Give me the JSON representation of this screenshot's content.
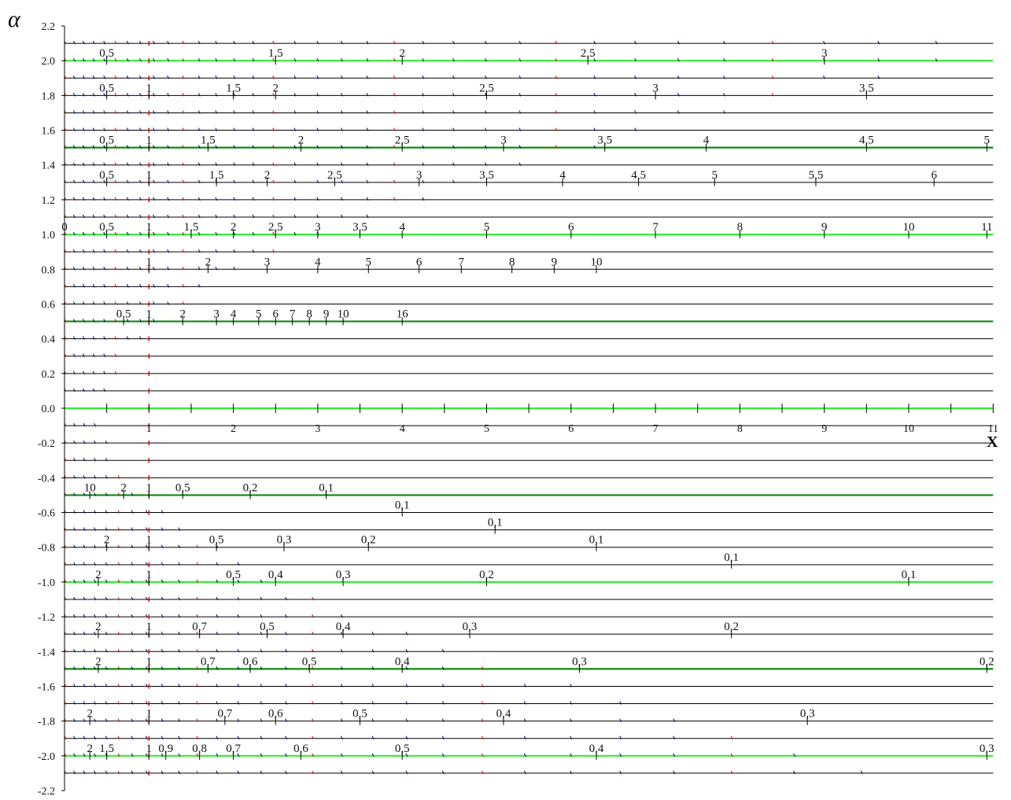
{
  "chart_data": {
    "type": "line",
    "title": "",
    "xlabel": "X",
    "ylabel": "α",
    "xlim": [
      0,
      11
    ],
    "ylim": [
      -2.2,
      2.2
    ],
    "yticks": [
      "2.2",
      "2.0",
      "1.8",
      "1.6",
      "1.4",
      "1.2",
      "1.0",
      "0.8",
      "0.6",
      "0.4",
      "0.2",
      "0.0",
      "-0.2",
      "-0.4",
      "-0.6",
      "-0.8",
      "-1.0",
      "-1.2",
      "-1.4",
      "-1.6",
      "-1.8",
      "-2.0",
      "-2.2"
    ],
    "xticks": [
      "1",
      "2",
      "3",
      "4",
      "5",
      "6",
      "7",
      "8",
      "9",
      "10",
      "11"
    ],
    "grid_step": 0.1,
    "colors": {
      "grid": "#000000",
      "highlight_light": "#33ee33",
      "highlight_dark": "#118811",
      "mark_red": "#dd0000",
      "mark_blue": "#000066"
    },
    "highlight_rows": [
      {
        "alpha": 2.0,
        "color": "light"
      },
      {
        "alpha": 1.5,
        "color": "dark"
      },
      {
        "alpha": 1.0,
        "color": "light"
      },
      {
        "alpha": 0.5,
        "color": "dark"
      },
      {
        "alpha": 0.0,
        "color": "light"
      },
      {
        "alpha": -0.5,
        "color": "dark"
      },
      {
        "alpha": -1.0,
        "color": "light"
      },
      {
        "alpha": -1.5,
        "color": "dark"
      },
      {
        "alpha": -2.0,
        "color": "light"
      }
    ],
    "row_labels": [
      {
        "alpha": 2.0,
        "labels": [
          {
            "x": 0.5,
            "t": "0,5"
          },
          {
            "x": 2.5,
            "t": "1,5"
          },
          {
            "x": 4.0,
            "t": "2"
          },
          {
            "x": 6.2,
            "t": "2,5"
          },
          {
            "x": 9.0,
            "t": "3"
          }
        ]
      },
      {
        "alpha": 1.8,
        "labels": [
          {
            "x": 0.5,
            "t": "0,5"
          },
          {
            "x": 1.0,
            "t": "1"
          },
          {
            "x": 2.0,
            "t": "1,5"
          },
          {
            "x": 2.5,
            "t": "2"
          },
          {
            "x": 5.0,
            "t": "2,5"
          },
          {
            "x": 7.0,
            "t": "3"
          },
          {
            "x": 9.5,
            "t": "3,5"
          }
        ]
      },
      {
        "alpha": 1.5,
        "labels": [
          {
            "x": 0.5,
            "t": "0,5"
          },
          {
            "x": 1.0,
            "t": "1"
          },
          {
            "x": 1.7,
            "t": "1,5"
          },
          {
            "x": 2.8,
            "t": "2"
          },
          {
            "x": 4.0,
            "t": "2,5"
          },
          {
            "x": 5.2,
            "t": "3"
          },
          {
            "x": 6.4,
            "t": "3,5"
          },
          {
            "x": 7.6,
            "t": "4"
          },
          {
            "x": 9.5,
            "t": "4,5"
          },
          {
            "x": 11.0,
            "t": "5"
          }
        ]
      },
      {
        "alpha": 1.3,
        "labels": [
          {
            "x": 0.5,
            "t": "0,5"
          },
          {
            "x": 1.0,
            "t": "1"
          },
          {
            "x": 1.8,
            "t": "1,5"
          },
          {
            "x": 2.4,
            "t": "2"
          },
          {
            "x": 3.2,
            "t": "2,5"
          },
          {
            "x": 4.2,
            "t": "3"
          },
          {
            "x": 5.0,
            "t": "3,5"
          },
          {
            "x": 5.9,
            "t": "4"
          },
          {
            "x": 6.8,
            "t": "4,5"
          },
          {
            "x": 7.7,
            "t": "5"
          },
          {
            "x": 8.9,
            "t": "5,5"
          },
          {
            "x": 10.3,
            "t": "6"
          }
        ]
      },
      {
        "alpha": 1.0,
        "labels": [
          {
            "x": 0.0,
            "t": "0"
          },
          {
            "x": 0.5,
            "t": "0,5"
          },
          {
            "x": 1.0,
            "t": "1"
          },
          {
            "x": 1.5,
            "t": "1,5"
          },
          {
            "x": 2.0,
            "t": "2"
          },
          {
            "x": 2.5,
            "t": "2,5"
          },
          {
            "x": 3.0,
            "t": "3"
          },
          {
            "x": 3.5,
            "t": "3,5"
          },
          {
            "x": 4.0,
            "t": "4"
          },
          {
            "x": 5.0,
            "t": "5"
          },
          {
            "x": 6.0,
            "t": "6"
          },
          {
            "x": 7.0,
            "t": "7"
          },
          {
            "x": 8.0,
            "t": "8"
          },
          {
            "x": 9.0,
            "t": "9"
          },
          {
            "x": 10.0,
            "t": "10"
          },
          {
            "x": 11.0,
            "t": "11"
          }
        ]
      },
      {
        "alpha": 0.8,
        "labels": [
          {
            "x": 1.0,
            "t": "1"
          },
          {
            "x": 1.7,
            "t": "2"
          },
          {
            "x": 2.4,
            "t": "3"
          },
          {
            "x": 3.0,
            "t": "4"
          },
          {
            "x": 3.6,
            "t": "5"
          },
          {
            "x": 4.2,
            "t": "6"
          },
          {
            "x": 4.7,
            "t": "7"
          },
          {
            "x": 5.3,
            "t": "8"
          },
          {
            "x": 5.8,
            "t": "9"
          },
          {
            "x": 6.3,
            "t": "10"
          }
        ]
      },
      {
        "alpha": 0.5,
        "labels": [
          {
            "x": 0.7,
            "t": "0.5"
          },
          {
            "x": 1.0,
            "t": "1"
          },
          {
            "x": 1.4,
            "t": "2"
          },
          {
            "x": 1.8,
            "t": "3"
          },
          {
            "x": 2.0,
            "t": "4"
          },
          {
            "x": 2.3,
            "t": "5"
          },
          {
            "x": 2.5,
            "t": "6"
          },
          {
            "x": 2.7,
            "t": "7"
          },
          {
            "x": 2.9,
            "t": "8"
          },
          {
            "x": 3.1,
            "t": "9"
          },
          {
            "x": 3.3,
            "t": "10"
          },
          {
            "x": 4.0,
            "t": "16"
          }
        ]
      },
      {
        "alpha": -0.5,
        "labels": [
          {
            "x": 0.3,
            "t": "10"
          },
          {
            "x": 0.7,
            "t": "2"
          },
          {
            "x": 1.0,
            "t": "1"
          },
          {
            "x": 1.4,
            "t": "0,5"
          },
          {
            "x": 2.2,
            "t": "0,2"
          },
          {
            "x": 3.1,
            "t": "0,1"
          }
        ]
      },
      {
        "alpha": -0.6,
        "labels": [
          {
            "x": 4.0,
            "t": "0,1"
          }
        ]
      },
      {
        "alpha": -0.7,
        "labels": [
          {
            "x": 5.1,
            "t": "0,1"
          }
        ]
      },
      {
        "alpha": -0.8,
        "labels": [
          {
            "x": 0.5,
            "t": "2"
          },
          {
            "x": 1.0,
            "t": "1"
          },
          {
            "x": 1.8,
            "t": "0,5"
          },
          {
            "x": 2.6,
            "t": "0,3"
          },
          {
            "x": 3.6,
            "t": "0,2"
          },
          {
            "x": 6.3,
            "t": "0,1"
          }
        ]
      },
      {
        "alpha": -0.9,
        "labels": [
          {
            "x": 7.9,
            "t": "0,1"
          }
        ]
      },
      {
        "alpha": -1.0,
        "labels": [
          {
            "x": 0.4,
            "t": "2"
          },
          {
            "x": 1.0,
            "t": "1"
          },
          {
            "x": 2.0,
            "t": "0,5"
          },
          {
            "x": 2.5,
            "t": "0,4"
          },
          {
            "x": 3.3,
            "t": "0,3"
          },
          {
            "x": 5.0,
            "t": "0,2"
          },
          {
            "x": 10.0,
            "t": "0,1"
          }
        ]
      },
      {
        "alpha": -1.3,
        "labels": [
          {
            "x": 0.4,
            "t": "2"
          },
          {
            "x": 1.0,
            "t": "1"
          },
          {
            "x": 1.6,
            "t": "0,7"
          },
          {
            "x": 2.4,
            "t": "0,5"
          },
          {
            "x": 3.3,
            "t": "0,4"
          },
          {
            "x": 4.8,
            "t": "0,3"
          },
          {
            "x": 7.9,
            "t": "0,2"
          }
        ]
      },
      {
        "alpha": -1.5,
        "labels": [
          {
            "x": 0.4,
            "t": "2"
          },
          {
            "x": 1.0,
            "t": "1"
          },
          {
            "x": 1.7,
            "t": "0,7"
          },
          {
            "x": 2.2,
            "t": "0,6"
          },
          {
            "x": 2.9,
            "t": "0,5"
          },
          {
            "x": 4.0,
            "t": "0,4"
          },
          {
            "x": 6.1,
            "t": "0,3"
          },
          {
            "x": 11.0,
            "t": "0,2"
          }
        ]
      },
      {
        "alpha": -1.8,
        "labels": [
          {
            "x": 0.3,
            "t": "2"
          },
          {
            "x": 1.0,
            "t": "1"
          },
          {
            "x": 1.9,
            "t": "0,7"
          },
          {
            "x": 2.5,
            "t": "0,6"
          },
          {
            "x": 3.5,
            "t": "0,5"
          },
          {
            "x": 5.2,
            "t": "0,4"
          },
          {
            "x": 8.8,
            "t": "0,3"
          }
        ]
      },
      {
        "alpha": -2.0,
        "labels": [
          {
            "x": 0.3,
            "t": "2"
          },
          {
            "x": 0.5,
            "t": "1.5"
          },
          {
            "x": 1.0,
            "t": "1"
          },
          {
            "x": 1.2,
            "t": "0,9"
          },
          {
            "x": 1.6,
            "t": "0,8"
          },
          {
            "x": 2.0,
            "t": "0,7"
          },
          {
            "x": 2.8,
            "t": "0,6"
          },
          {
            "x": 4.0,
            "t": "0,5"
          },
          {
            "x": 6.3,
            "t": "0,4"
          },
          {
            "x": 11.0,
            "t": "0,3"
          }
        ]
      }
    ]
  }
}
